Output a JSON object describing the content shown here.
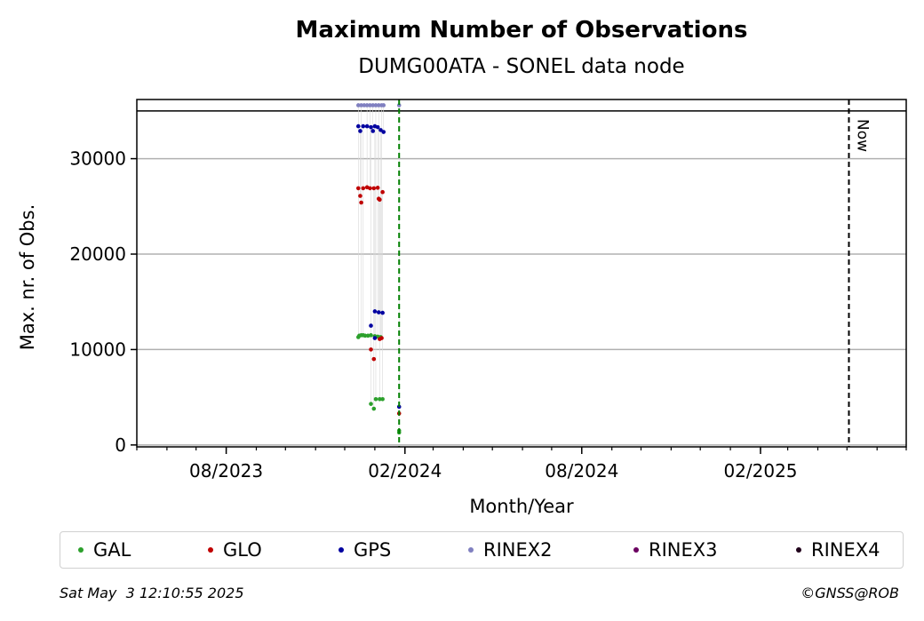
{
  "chart_data": {
    "type": "scatter",
    "title": "Maximum Number of Observations",
    "subtitle": "DUMG00ATA - SONEL data node",
    "xlabel": "Month/Year",
    "ylabel": "Max. nr. of Obs.",
    "x_ticks": [
      "08/2023",
      "02/2024",
      "08/2024",
      "02/2025"
    ],
    "y_ticks": [
      0,
      10000,
      20000,
      30000
    ],
    "ylim": [
      -200,
      36200
    ],
    "xlim": [
      "2023-05-01",
      "2025-07-01"
    ],
    "reference_line": 35000,
    "grid": "horizontal",
    "markers": [
      {
        "label": "",
        "date": "2024-01-26",
        "style": "dashed",
        "color": "#008000"
      },
      {
        "label": "Now",
        "date": "2025-05-03",
        "style": "dashed",
        "color": "#000000"
      }
    ],
    "legend_position": "bottom",
    "series": [
      {
        "name": "GAL",
        "color": "#2ca02c",
        "points": [
          [
            "2023-12-15",
            11300
          ],
          [
            "2023-12-16",
            11450
          ],
          [
            "2023-12-18",
            11500
          ],
          [
            "2023-12-20",
            11500
          ],
          [
            "2023-12-22",
            11450
          ],
          [
            "2023-12-25",
            11450
          ],
          [
            "2023-12-28",
            11500
          ],
          [
            "2024-01-01",
            11400
          ],
          [
            "2024-01-04",
            11350
          ],
          [
            "2024-01-07",
            11300
          ],
          [
            "2023-12-28",
            4300
          ],
          [
            "2023-12-31",
            3800
          ],
          [
            "2024-01-02",
            4800
          ],
          [
            "2024-01-06",
            4800
          ],
          [
            "2024-01-09",
            4800
          ],
          [
            "2024-01-26",
            1500
          ],
          [
            "2024-01-26",
            1300
          ]
        ]
      },
      {
        "name": "GLO",
        "color": "#c00000",
        "points": [
          [
            "2023-12-15",
            26900
          ],
          [
            "2023-12-17",
            26100
          ],
          [
            "2023-12-18",
            25400
          ],
          [
            "2023-12-20",
            26900
          ],
          [
            "2023-12-24",
            27000
          ],
          [
            "2023-12-27",
            26900
          ],
          [
            "2023-12-31",
            26900
          ],
          [
            "2024-01-04",
            26950
          ],
          [
            "2024-01-05",
            25800
          ],
          [
            "2024-01-06",
            25700
          ],
          [
            "2024-01-09",
            26500
          ],
          [
            "2023-12-28",
            10000
          ],
          [
            "2023-12-31",
            9000
          ],
          [
            "2024-01-06",
            11100
          ],
          [
            "2024-01-08",
            11200
          ],
          [
            "2024-01-26",
            3300
          ]
        ]
      },
      {
        "name": "GPS",
        "color": "#0000a0",
        "points": [
          [
            "2023-12-15",
            33400
          ],
          [
            "2023-12-17",
            32900
          ],
          [
            "2023-12-20",
            33400
          ],
          [
            "2023-12-24",
            33400
          ],
          [
            "2023-12-28",
            33300
          ],
          [
            "2023-12-30",
            32900
          ],
          [
            "2024-01-01",
            33400
          ],
          [
            "2024-01-04",
            33300
          ],
          [
            "2024-01-07",
            33000
          ],
          [
            "2024-01-10",
            32800
          ],
          [
            "2023-12-28",
            12500
          ],
          [
            "2024-01-01",
            14000
          ],
          [
            "2024-01-05",
            13900
          ],
          [
            "2024-01-09",
            13850
          ],
          [
            "2024-01-01",
            11200
          ],
          [
            "2024-01-26",
            4000
          ]
        ]
      },
      {
        "name": "RINEX2",
        "color": "#8080c0",
        "points": [
          [
            "2023-12-15",
            35600
          ],
          [
            "2023-12-18",
            35600
          ],
          [
            "2023-12-21",
            35600
          ],
          [
            "2023-12-24",
            35600
          ],
          [
            "2023-12-27",
            35600
          ],
          [
            "2023-12-30",
            35600
          ],
          [
            "2024-01-02",
            35600
          ],
          [
            "2024-01-05",
            35600
          ],
          [
            "2024-01-08",
            35600
          ],
          [
            "2024-01-10",
            35600
          ],
          [
            "2024-01-26",
            35600
          ]
        ]
      },
      {
        "name": "RINEX3",
        "color": "#6b0060",
        "points": []
      },
      {
        "name": "RINEX4",
        "color": "#20001a",
        "points": []
      }
    ]
  },
  "footer": {
    "timestamp": "Sat May  3 12:10:55 2025",
    "credit": "©GNSS@ROB"
  }
}
